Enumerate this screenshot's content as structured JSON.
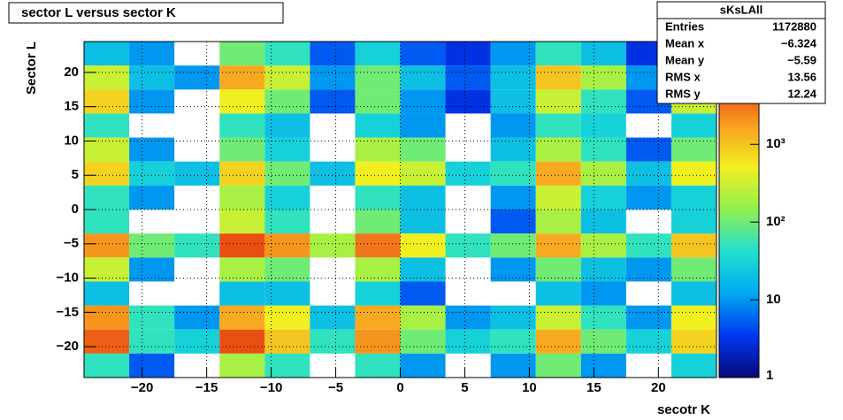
{
  "chart_data": {
    "type": "heatmap",
    "title": "sector L versus sector K",
    "xlabel": "secotr K",
    "ylabel": "Sector L",
    "xlim": [
      -24.5,
      24.5
    ],
    "ylim": [
      -24.5,
      24.5
    ],
    "zlim": [
      1,
      21000
    ],
    "log_z": true,
    "grid": true,
    "xticks": [
      {
        "value": -20,
        "label": "−20"
      },
      {
        "value": -15,
        "label": "−15"
      },
      {
        "value": -10,
        "label": "−10"
      },
      {
        "value": -5,
        "label": "−5"
      },
      0,
      5,
      10,
      15,
      20
    ],
    "yticks": [
      {
        "value": -20,
        "label": "−20"
      },
      {
        "value": -15,
        "label": "−15"
      },
      {
        "value": -10,
        "label": "−10"
      },
      {
        "value": -5,
        "label": "−5"
      },
      0,
      5,
      10,
      15,
      20
    ],
    "zticks": [
      1,
      10,
      {
        "value": 100,
        "label": "10²"
      },
      {
        "value": 1000,
        "label": "10³"
      }
    ],
    "palette": [
      "#08087a",
      "#0038f0",
      "#00a8f0",
      "#20e0d0",
      "#90f050",
      "#f0f020",
      "#f8a020",
      "#e84010",
      "#a00808"
    ],
    "xbins": [
      -24.5,
      -21,
      -17.5,
      -14,
      -10.5,
      -7,
      -3.5,
      0,
      3.5,
      7,
      10.5,
      14,
      17.5,
      21,
      24.5
    ],
    "ybins": [
      24.5,
      21,
      17.5,
      14,
      10.5,
      7,
      3.5,
      0,
      -3.5,
      -7,
      -10.5,
      -14,
      -17.5,
      -21,
      -24.5
    ],
    "values": [
      [
        20,
        10,
        null,
        100,
        50,
        5,
        30,
        5,
        3,
        10,
        50,
        20,
        3,
        null
      ],
      [
        300,
        20,
        10,
        1500,
        300,
        10,
        100,
        20,
        5,
        20,
        1000,
        200,
        10,
        30
      ],
      [
        800,
        10,
        null,
        500,
        100,
        5,
        100,
        10,
        3,
        20,
        300,
        50,
        5,
        300
      ],
      [
        50,
        null,
        null,
        50,
        20,
        null,
        30,
        10,
        null,
        10,
        50,
        30,
        null,
        30
      ],
      [
        300,
        10,
        null,
        100,
        30,
        null,
        200,
        100,
        null,
        20,
        200,
        50,
        5,
        100
      ],
      [
        800,
        30,
        20,
        800,
        100,
        20,
        500,
        300,
        30,
        50,
        1500,
        200,
        20,
        500
      ],
      [
        50,
        10,
        null,
        200,
        30,
        null,
        50,
        20,
        null,
        10,
        300,
        30,
        10,
        30
      ],
      [
        50,
        null,
        null,
        300,
        50,
        null,
        100,
        20,
        null,
        5,
        200,
        20,
        null,
        30
      ],
      [
        2000,
        100,
        50,
        5000,
        2000,
        200,
        3000,
        500,
        50,
        100,
        1500,
        200,
        50,
        1000
      ],
      [
        300,
        10,
        null,
        200,
        100,
        null,
        200,
        20,
        null,
        10,
        100,
        20,
        10,
        100
      ],
      [
        20,
        null,
        null,
        20,
        20,
        null,
        30,
        5,
        null,
        null,
        20,
        10,
        null,
        20
      ],
      [
        2000,
        50,
        10,
        1500,
        500,
        20,
        1500,
        200,
        10,
        20,
        300,
        50,
        10,
        500
      ],
      [
        4000,
        50,
        30,
        5000,
        1000,
        50,
        2000,
        100,
        30,
        50,
        1500,
        100,
        30,
        800
      ],
      [
        50,
        5,
        null,
        200,
        50,
        null,
        50,
        10,
        null,
        10,
        100,
        10,
        null,
        30
      ]
    ],
    "stats": {
      "title": "sKsLAll",
      "rows": [
        [
          "Entries",
          "1172880"
        ],
        [
          "Mean x",
          "−6.324"
        ],
        [
          "Mean y",
          "−5.59"
        ],
        [
          "RMS x",
          "13.56"
        ],
        [
          "RMS y",
          "12.24"
        ]
      ]
    }
  }
}
